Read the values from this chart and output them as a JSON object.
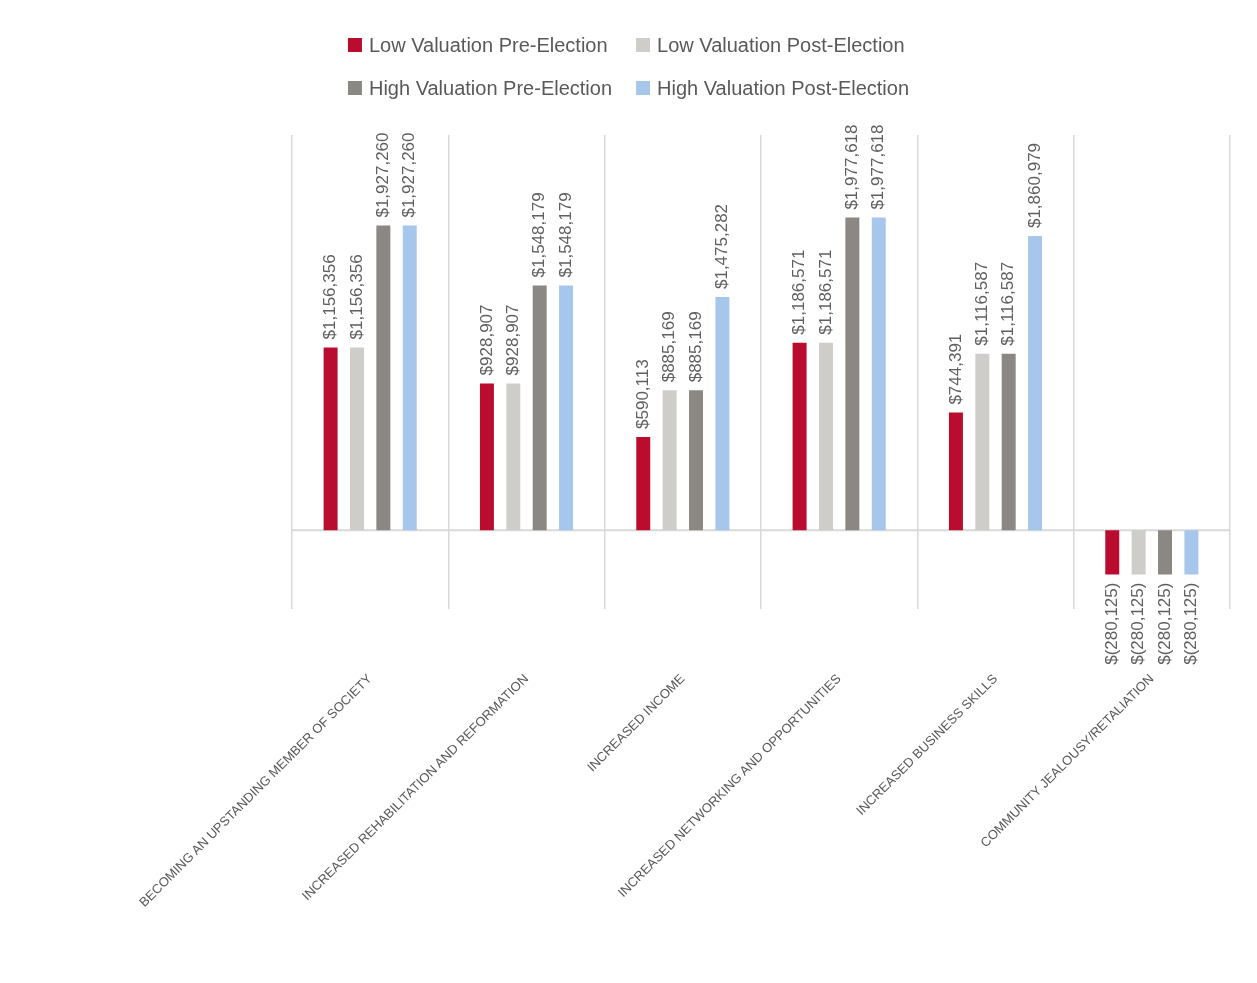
{
  "chart_data": {
    "type": "bar",
    "categories": [
      "BECOMING AN UPSTANDING MEMBER OF SOCIETY",
      "INCREASED REHABILITATION AND REFORMATION",
      "INCREASED INCOME",
      "INCREASED NETWORKING AND OPPORTUNITIES",
      "INCREASED BUSINESS SKILLS",
      "COMMUNITY JEALOUSY/RETALIATION"
    ],
    "series": [
      {
        "name": "Low Valuation Pre-Election",
        "color": "#ba0c2f",
        "values": [
          1156356,
          928907,
          590113,
          1186571,
          744391,
          -280125
        ],
        "value_labels": [
          "$1,156,356",
          "$928,907",
          "$590,113",
          "$1,186,571",
          "$744,391",
          "$(280,125)"
        ]
      },
      {
        "name": "Low Valuation Post-Election",
        "color": "#cfcdc9",
        "values": [
          1156356,
          928907,
          885169,
          1186571,
          1116587,
          -280125
        ],
        "value_labels": [
          "$1,156,356",
          "$928,907",
          "$885,169",
          "$1,186,571",
          "$1,116,587",
          "$(280,125)"
        ]
      },
      {
        "name": "High Valuation Pre-Election",
        "color": "#8b8782",
        "values": [
          1927260,
          1548179,
          885169,
          1977618,
          1116587,
          -280125
        ],
        "value_labels": [
          "$1,927,260",
          "$1,548,179",
          "$885,169",
          "$1,977,618",
          "$1,116,587",
          "$(280,125)"
        ]
      },
      {
        "name": "High Valuation Post-Election",
        "color": "#a7c6ec",
        "values": [
          1927260,
          1548179,
          1475282,
          1977618,
          1860979,
          -280125
        ],
        "value_labels": [
          "$1,927,260",
          "$1,548,179",
          "$1,475,282",
          "$1,977,618",
          "$1,860,979",
          "$(280,125)"
        ]
      }
    ],
    "ylim": [
      -500000,
      2500000
    ],
    "grid": "x",
    "legend": "top",
    "tick_labels": "x"
  }
}
